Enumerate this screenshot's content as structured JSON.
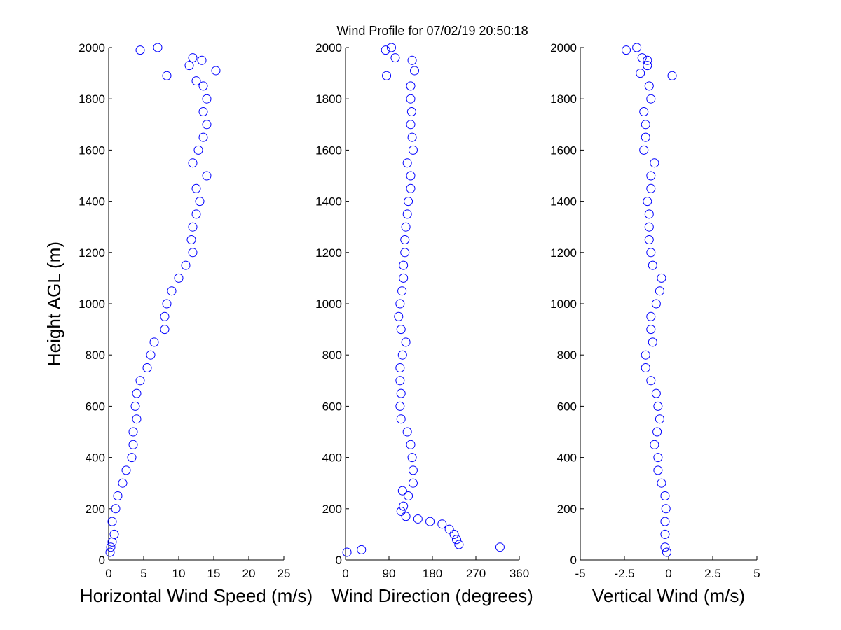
{
  "chart_data": [
    {
      "type": "scatter",
      "color": "#0000ff",
      "xlabel": "Horizontal Wind Speed (m/s)",
      "ylabel": "Height AGL (m)",
      "xlim": [
        0,
        25
      ],
      "xticks": [
        0,
        5,
        10,
        15,
        20,
        25
      ],
      "ylim": [
        0,
        2000
      ],
      "yticks": [
        0,
        200,
        400,
        600,
        800,
        1000,
        1200,
        1400,
        1600,
        1800,
        2000
      ],
      "y": [
        30,
        50,
        70,
        100,
        150,
        200,
        250,
        300,
        350,
        400,
        450,
        500,
        550,
        600,
        650,
        700,
        750,
        800,
        850,
        900,
        950,
        1000,
        1050,
        1100,
        1150,
        1200,
        1250,
        1300,
        1350,
        1400,
        1450,
        1500,
        1550,
        1600,
        1650,
        1700,
        1750,
        1800,
        1850,
        1870,
        1890,
        1910,
        1930,
        1950,
        1960,
        1990,
        2000
      ],
      "x": [
        0.2,
        0.3,
        0.5,
        0.8,
        0.5,
        1,
        1.3,
        2,
        2.5,
        3.3,
        3.5,
        3.5,
        4,
        3.8,
        4,
        4.5,
        5.5,
        6,
        6.5,
        8,
        8,
        8.3,
        9,
        10,
        11,
        12,
        11.8,
        12,
        12.5,
        13,
        12.5,
        14,
        12,
        12.8,
        13.5,
        14,
        13.5,
        14,
        13.5,
        12.5,
        8.3,
        15.3,
        11.5,
        13.3,
        12,
        4.5,
        7
      ]
    },
    {
      "type": "scatter",
      "color": "#0000ff",
      "title": "Wind Profile for  07/02/19 20:50:18",
      "xlabel": "Wind Direction (degrees)",
      "xlim": [
        0,
        360
      ],
      "xticks": [
        0,
        90,
        180,
        270,
        360
      ],
      "ylim": [
        0,
        2000
      ],
      "yticks": [
        0,
        200,
        400,
        600,
        800,
        1000,
        1200,
        1400,
        1600,
        1800,
        2000
      ],
      "y": [
        30,
        40,
        50,
        60,
        80,
        100,
        120,
        140,
        150,
        160,
        170,
        190,
        210,
        250,
        270,
        300,
        350,
        400,
        450,
        500,
        550,
        600,
        650,
        700,
        750,
        800,
        850,
        900,
        950,
        1000,
        1050,
        1100,
        1150,
        1200,
        1250,
        1300,
        1350,
        1400,
        1450,
        1500,
        1550,
        1600,
        1650,
        1700,
        1750,
        1800,
        1850,
        1890,
        1910,
        1950,
        1960,
        1990,
        2000
      ],
      "x": [
        3,
        33,
        320,
        235,
        230,
        225,
        215,
        200,
        175,
        150,
        125,
        115,
        120,
        130,
        118,
        140,
        140,
        138,
        135,
        128,
        115,
        113,
        115,
        113,
        113,
        118,
        125,
        115,
        110,
        113,
        117,
        120,
        120,
        123,
        123,
        125,
        128,
        130,
        135,
        135,
        128,
        140,
        138,
        135,
        137,
        135,
        135,
        85,
        143,
        138,
        103,
        83,
        95
      ]
    },
    {
      "type": "scatter",
      "color": "#0000ff",
      "xlabel": "Vertical Wind (m/s)",
      "xlim": [
        -5,
        5
      ],
      "xticks": [
        -5,
        -2.5,
        0,
        2.5,
        5
      ],
      "ylim": [
        0,
        2000
      ],
      "yticks": [
        0,
        200,
        400,
        600,
        800,
        1000,
        1200,
        1400,
        1600,
        1800,
        2000
      ],
      "y": [
        30,
        50,
        100,
        150,
        200,
        250,
        300,
        350,
        400,
        450,
        500,
        550,
        600,
        650,
        700,
        750,
        800,
        850,
        900,
        950,
        1000,
        1050,
        1100,
        1150,
        1200,
        1250,
        1300,
        1350,
        1400,
        1450,
        1500,
        1550,
        1600,
        1650,
        1700,
        1750,
        1800,
        1850,
        1890,
        1900,
        1930,
        1950,
        1960,
        1990,
        2000
      ],
      "x": [
        -0.1,
        -0.2,
        -0.2,
        -0.2,
        -0.15,
        -0.2,
        -0.4,
        -0.6,
        -0.6,
        -0.8,
        -0.65,
        -0.5,
        -0.6,
        -0.7,
        -1.0,
        -1.3,
        -1.3,
        -0.9,
        -1.0,
        -1.0,
        -0.7,
        -0.5,
        -0.4,
        -0.9,
        -1.0,
        -1.1,
        -1.1,
        -1.1,
        -1.2,
        -1.0,
        -1.0,
        -0.8,
        -1.4,
        -1.3,
        -1.3,
        -1.4,
        -1.0,
        -1.1,
        0.2,
        -1.6,
        -1.2,
        -1.2,
        -1.5,
        -2.4,
        -1.8
      ]
    }
  ]
}
